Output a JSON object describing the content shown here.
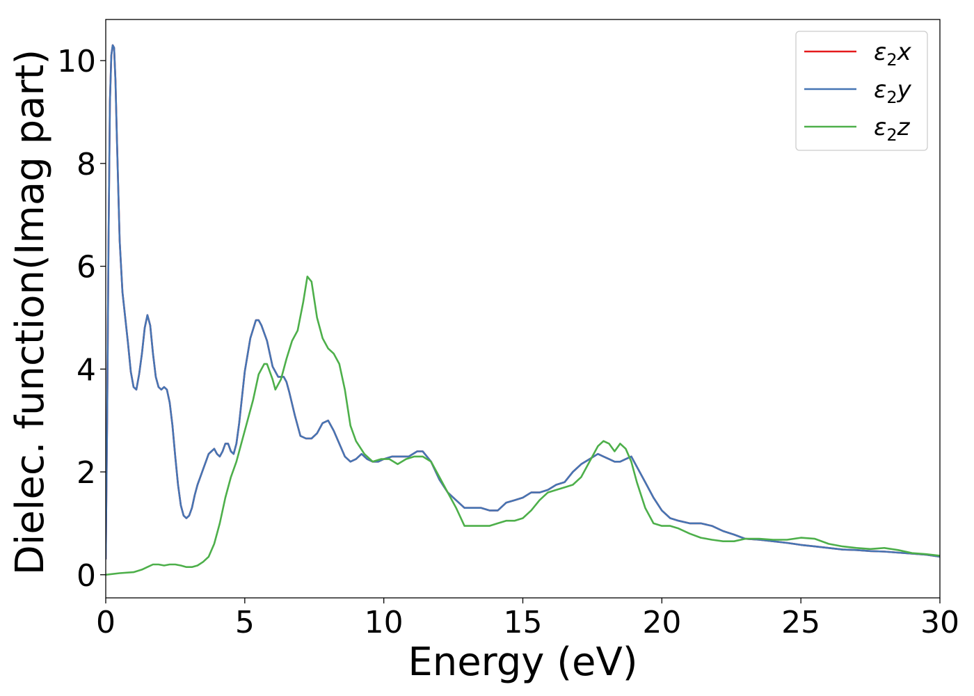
{
  "chart_data": {
    "type": "line",
    "title": "",
    "xlabel": "Energy (eV)",
    "ylabel": "Dielec. function(Imag part)",
    "xlim": [
      0,
      30
    ],
    "ylim": [
      -0.45,
      10.8
    ],
    "xticks": [
      0,
      5,
      10,
      15,
      20,
      25,
      30
    ],
    "yticks": [
      0,
      2,
      4,
      6,
      8,
      10
    ],
    "grid": false,
    "legend_position": "top-right",
    "series": [
      {
        "name": "ε2x",
        "legend_base": "ε",
        "legend_sub": "2",
        "legend_suffix": "x",
        "color": "#e41a1c",
        "x": [
          0,
          0.05,
          0.1,
          0.15,
          0.2,
          0.25,
          0.3,
          0.35,
          0.4,
          0.5,
          0.6,
          0.7,
          0.8,
          0.9,
          1.0,
          1.1,
          1.2,
          1.3,
          1.4,
          1.5,
          1.6,
          1.7,
          1.8,
          1.9,
          2.0,
          2.1,
          2.2,
          2.3,
          2.4,
          2.5,
          2.6,
          2.7,
          2.8,
          2.9,
          3.0,
          3.1,
          3.2,
          3.3,
          3.4,
          3.5,
          3.6,
          3.7,
          3.8,
          3.9,
          4.0,
          4.1,
          4.2,
          4.3,
          4.4,
          4.5,
          4.6,
          4.7,
          4.8,
          4.9,
          5.0,
          5.2,
          5.4,
          5.5,
          5.6,
          5.8,
          6.0,
          6.2,
          6.4,
          6.5,
          6.6,
          6.8,
          7.0,
          7.2,
          7.4,
          7.6,
          7.8,
          8.0,
          8.2,
          8.4,
          8.6,
          8.8,
          9.0,
          9.2,
          9.4,
          9.6,
          9.8,
          10.0,
          10.3,
          10.6,
          10.9,
          11.2,
          11.4,
          11.7,
          12.0,
          12.3,
          12.6,
          12.9,
          13.2,
          13.5,
          13.8,
          14.1,
          14.4,
          14.7,
          15.0,
          15.3,
          15.6,
          15.9,
          16.2,
          16.5,
          16.8,
          17.1,
          17.4,
          17.7,
          17.9,
          18.1,
          18.3,
          18.5,
          18.7,
          18.9,
          19.1,
          19.4,
          19.7,
          20.0,
          20.3,
          20.6,
          21.0,
          21.4,
          21.8,
          22.2,
          22.6,
          23.0,
          23.5,
          24.0,
          24.5,
          25.0,
          25.5,
          26.0,
          26.5,
          27.0,
          27.5,
          28.0,
          28.5,
          29.0,
          29.5,
          30.0
        ],
        "y": [
          0.3,
          3.0,
          6.5,
          9.2,
          10.1,
          10.3,
          10.25,
          9.6,
          8.5,
          6.5,
          5.5,
          5.0,
          4.5,
          3.95,
          3.65,
          3.6,
          3.9,
          4.3,
          4.8,
          5.05,
          4.85,
          4.3,
          3.85,
          3.65,
          3.6,
          3.65,
          3.6,
          3.35,
          2.9,
          2.3,
          1.75,
          1.35,
          1.15,
          1.1,
          1.15,
          1.3,
          1.55,
          1.75,
          1.9,
          2.05,
          2.2,
          2.35,
          2.4,
          2.45,
          2.35,
          2.3,
          2.4,
          2.55,
          2.55,
          2.4,
          2.35,
          2.55,
          2.95,
          3.45,
          3.95,
          4.6,
          4.95,
          4.95,
          4.85,
          4.55,
          4.05,
          3.85,
          3.85,
          3.75,
          3.55,
          3.1,
          2.7,
          2.65,
          2.65,
          2.75,
          2.95,
          3.0,
          2.8,
          2.55,
          2.3,
          2.2,
          2.25,
          2.35,
          2.25,
          2.2,
          2.2,
          2.25,
          2.3,
          2.3,
          2.3,
          2.4,
          2.4,
          2.2,
          1.85,
          1.6,
          1.45,
          1.3,
          1.3,
          1.3,
          1.25,
          1.25,
          1.4,
          1.45,
          1.5,
          1.6,
          1.6,
          1.65,
          1.75,
          1.8,
          2.0,
          2.15,
          2.25,
          2.35,
          2.3,
          2.25,
          2.2,
          2.2,
          2.25,
          2.3,
          2.1,
          1.8,
          1.5,
          1.25,
          1.1,
          1.05,
          1.0,
          1.0,
          0.95,
          0.85,
          0.78,
          0.7,
          0.68,
          0.65,
          0.62,
          0.58,
          0.55,
          0.52,
          0.49,
          0.48,
          0.46,
          0.45,
          0.43,
          0.41,
          0.39,
          0.35
        ]
      },
      {
        "name": "ε2y",
        "legend_base": "ε",
        "legend_sub": "2",
        "legend_suffix": "y",
        "color": "#4575b4",
        "x": [
          0,
          0.05,
          0.1,
          0.15,
          0.2,
          0.25,
          0.3,
          0.35,
          0.4,
          0.5,
          0.6,
          0.7,
          0.8,
          0.9,
          1.0,
          1.1,
          1.2,
          1.3,
          1.4,
          1.5,
          1.6,
          1.7,
          1.8,
          1.9,
          2.0,
          2.1,
          2.2,
          2.3,
          2.4,
          2.5,
          2.6,
          2.7,
          2.8,
          2.9,
          3.0,
          3.1,
          3.2,
          3.3,
          3.4,
          3.5,
          3.6,
          3.7,
          3.8,
          3.9,
          4.0,
          4.1,
          4.2,
          4.3,
          4.4,
          4.5,
          4.6,
          4.7,
          4.8,
          4.9,
          5.0,
          5.2,
          5.4,
          5.5,
          5.6,
          5.8,
          6.0,
          6.2,
          6.4,
          6.5,
          6.6,
          6.8,
          7.0,
          7.2,
          7.4,
          7.6,
          7.8,
          8.0,
          8.2,
          8.4,
          8.6,
          8.8,
          9.0,
          9.2,
          9.4,
          9.6,
          9.8,
          10.0,
          10.3,
          10.6,
          10.9,
          11.2,
          11.4,
          11.7,
          12.0,
          12.3,
          12.6,
          12.9,
          13.2,
          13.5,
          13.8,
          14.1,
          14.4,
          14.7,
          15.0,
          15.3,
          15.6,
          15.9,
          16.2,
          16.5,
          16.8,
          17.1,
          17.4,
          17.7,
          17.9,
          18.1,
          18.3,
          18.5,
          18.7,
          18.9,
          19.1,
          19.4,
          19.7,
          20.0,
          20.3,
          20.6,
          21.0,
          21.4,
          21.8,
          22.2,
          22.6,
          23.0,
          23.5,
          24.0,
          24.5,
          25.0,
          25.5,
          26.0,
          26.5,
          27.0,
          27.5,
          28.0,
          28.5,
          29.0,
          29.5,
          30.0
        ],
        "y": [
          0.3,
          3.0,
          6.5,
          9.2,
          10.1,
          10.3,
          10.25,
          9.6,
          8.5,
          6.5,
          5.5,
          5.0,
          4.5,
          3.95,
          3.65,
          3.6,
          3.9,
          4.3,
          4.8,
          5.05,
          4.85,
          4.3,
          3.85,
          3.65,
          3.6,
          3.65,
          3.6,
          3.35,
          2.9,
          2.3,
          1.75,
          1.35,
          1.15,
          1.1,
          1.15,
          1.3,
          1.55,
          1.75,
          1.9,
          2.05,
          2.2,
          2.35,
          2.4,
          2.45,
          2.35,
          2.3,
          2.4,
          2.55,
          2.55,
          2.4,
          2.35,
          2.55,
          2.95,
          3.45,
          3.95,
          4.6,
          4.95,
          4.95,
          4.85,
          4.55,
          4.05,
          3.85,
          3.85,
          3.75,
          3.55,
          3.1,
          2.7,
          2.65,
          2.65,
          2.75,
          2.95,
          3.0,
          2.8,
          2.55,
          2.3,
          2.2,
          2.25,
          2.35,
          2.25,
          2.2,
          2.2,
          2.25,
          2.3,
          2.3,
          2.3,
          2.4,
          2.4,
          2.2,
          1.85,
          1.6,
          1.45,
          1.3,
          1.3,
          1.3,
          1.25,
          1.25,
          1.4,
          1.45,
          1.5,
          1.6,
          1.6,
          1.65,
          1.75,
          1.8,
          2.0,
          2.15,
          2.25,
          2.35,
          2.3,
          2.25,
          2.2,
          2.2,
          2.25,
          2.3,
          2.1,
          1.8,
          1.5,
          1.25,
          1.1,
          1.05,
          1.0,
          1.0,
          0.95,
          0.85,
          0.78,
          0.7,
          0.68,
          0.65,
          0.62,
          0.58,
          0.55,
          0.52,
          0.49,
          0.48,
          0.46,
          0.45,
          0.43,
          0.41,
          0.39,
          0.35
        ]
      },
      {
        "name": "ε2z",
        "legend_base": "ε",
        "legend_sub": "2",
        "legend_suffix": "z",
        "color": "#4daf4a",
        "x": [
          0,
          0.5,
          1.0,
          1.3,
          1.5,
          1.7,
          1.9,
          2.1,
          2.3,
          2.5,
          2.7,
          2.9,
          3.1,
          3.3,
          3.5,
          3.7,
          3.9,
          4.1,
          4.3,
          4.5,
          4.7,
          4.9,
          5.1,
          5.3,
          5.5,
          5.7,
          5.8,
          6.0,
          6.1,
          6.3,
          6.5,
          6.7,
          6.9,
          7.1,
          7.25,
          7.4,
          7.6,
          7.8,
          8.0,
          8.2,
          8.4,
          8.6,
          8.8,
          9.0,
          9.3,
          9.6,
          9.9,
          10.2,
          10.5,
          10.8,
          11.1,
          11.4,
          11.7,
          12.0,
          12.3,
          12.6,
          12.9,
          13.2,
          13.5,
          13.8,
          14.1,
          14.4,
          14.7,
          15.0,
          15.3,
          15.6,
          15.9,
          16.2,
          16.5,
          16.8,
          17.1,
          17.4,
          17.7,
          17.9,
          18.1,
          18.3,
          18.5,
          18.7,
          18.9,
          19.1,
          19.4,
          19.7,
          20.0,
          20.3,
          20.6,
          21.0,
          21.4,
          21.8,
          22.2,
          22.6,
          23.0,
          23.5,
          24.0,
          24.5,
          25.0,
          25.5,
          26.0,
          26.5,
          27.0,
          27.5,
          28.0,
          28.5,
          29.0,
          29.5,
          30.0
        ],
        "y": [
          0.0,
          0.03,
          0.05,
          0.1,
          0.15,
          0.2,
          0.2,
          0.18,
          0.2,
          0.2,
          0.18,
          0.15,
          0.15,
          0.18,
          0.25,
          0.35,
          0.6,
          1.0,
          1.5,
          1.9,
          2.2,
          2.6,
          3.0,
          3.4,
          3.9,
          4.1,
          4.1,
          3.8,
          3.6,
          3.8,
          4.2,
          4.55,
          4.75,
          5.3,
          5.8,
          5.7,
          5.0,
          4.6,
          4.4,
          4.3,
          4.1,
          3.6,
          2.9,
          2.6,
          2.35,
          2.2,
          2.25,
          2.25,
          2.15,
          2.25,
          2.3,
          2.3,
          2.2,
          1.9,
          1.6,
          1.3,
          0.95,
          0.95,
          0.95,
          0.95,
          1.0,
          1.05,
          1.05,
          1.1,
          1.25,
          1.45,
          1.6,
          1.65,
          1.7,
          1.75,
          1.9,
          2.2,
          2.5,
          2.6,
          2.55,
          2.4,
          2.55,
          2.45,
          2.2,
          1.8,
          1.3,
          1.0,
          0.95,
          0.95,
          0.9,
          0.8,
          0.72,
          0.68,
          0.65,
          0.65,
          0.7,
          0.7,
          0.68,
          0.68,
          0.72,
          0.7,
          0.6,
          0.55,
          0.52,
          0.5,
          0.52,
          0.48,
          0.42,
          0.4,
          0.37
        ]
      }
    ]
  }
}
